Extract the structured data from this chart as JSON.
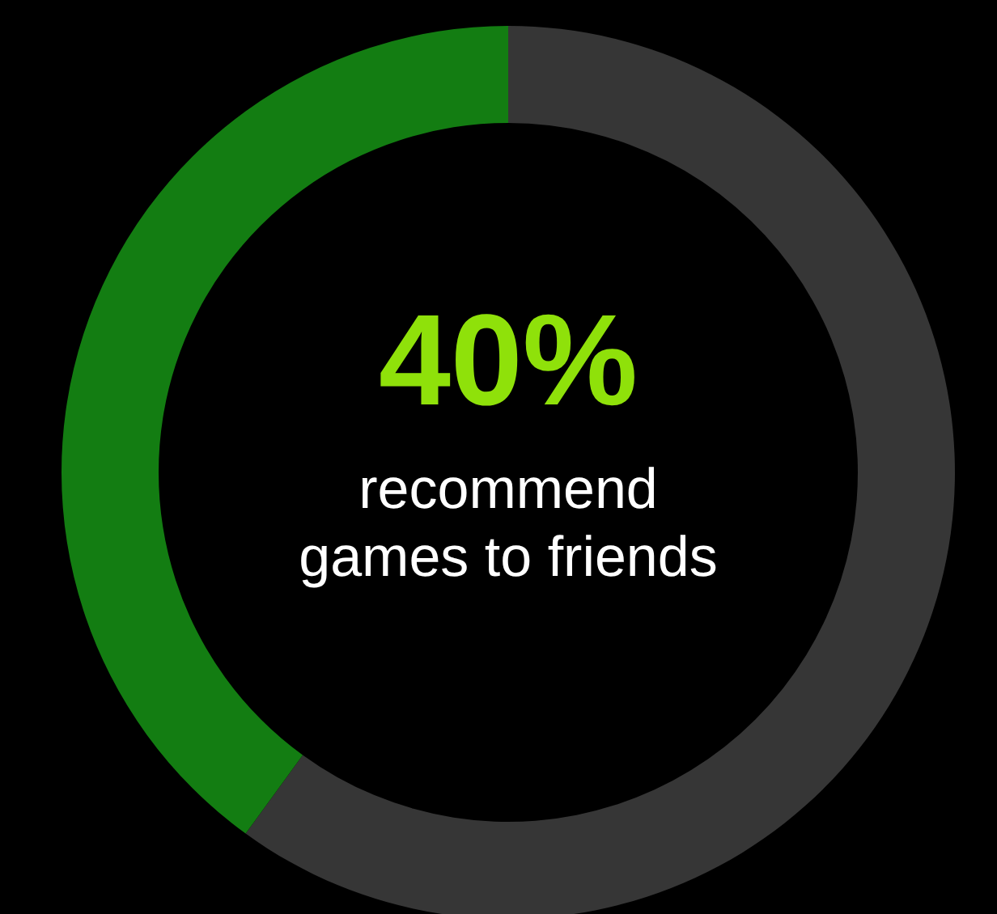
{
  "chart_data": {
    "type": "donut",
    "categories": [
      null,
      null
    ],
    "values": [
      60,
      40
    ],
    "colors": [
      "#363636",
      "#137d12"
    ],
    "value_labels": [
      null,
      "40%"
    ],
    "annotations": [
      "recommend\ngames to friends"
    ],
    "legend": false
  }
}
